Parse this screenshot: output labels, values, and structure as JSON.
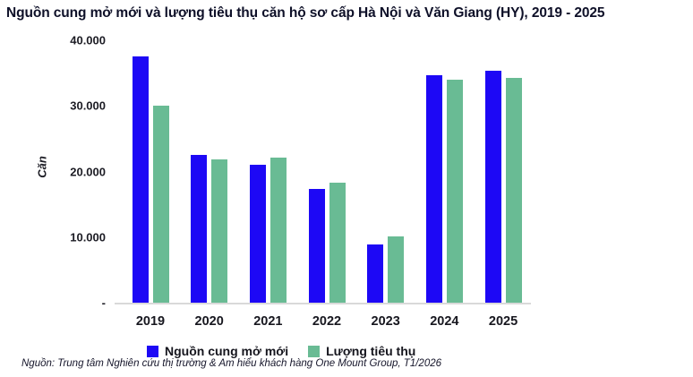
{
  "title": "Nguồn cung mở mới và lượng tiêu thụ căn hộ sơ cấp Hà Nội và Văn Giang (HY), 2019 - 2025",
  "source_note": "Nguồn: Trung tâm Nghiên cứu thị trường & Am hiểu khách hàng One Mount Group, T1/2026",
  "colors": {
    "supply_blue": "#1D08F5",
    "absorption_green": "#69BB94",
    "axis_line": "#D9D9D9",
    "text_dark": "#0E1028"
  },
  "chart_data": {
    "type": "bar",
    "title": "Nguồn cung mở mới và lượng tiêu thụ căn hộ sơ cấp Hà Nội và Văn Giang (HY), 2019 - 2025",
    "xlabel": "",
    "ylabel": "Căn",
    "categories": [
      "2019",
      "2020",
      "2021",
      "2022",
      "2023",
      "2024",
      "2025"
    ],
    "series": [
      {
        "name": "Nguồn cung mở mới",
        "color": "#1D08F5",
        "values": [
          37500,
          22500,
          21000,
          17300,
          8900,
          34700,
          35400
        ]
      },
      {
        "name": "Lượng tiêu thụ",
        "color": "#69BB94",
        "values": [
          30000,
          21900,
          22100,
          18300,
          10100,
          34000,
          34300
        ]
      }
    ],
    "ylim": [
      0,
      40000
    ],
    "yticks": [
      {
        "value": 40000,
        "label": "40.000"
      },
      {
        "value": 30000,
        "label": "30.000"
      },
      {
        "value": 20000,
        "label": "20.000"
      },
      {
        "value": 10000,
        "label": "10.000"
      },
      {
        "value": 0,
        "label": "-"
      }
    ],
    "grid": false,
    "legend_position": "bottom"
  }
}
